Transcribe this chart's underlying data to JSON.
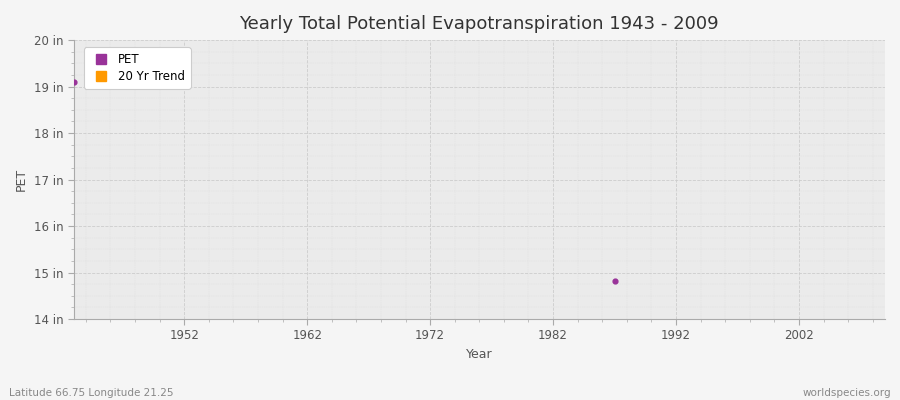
{
  "title": "Yearly Total Potential Evapotranspiration 1943 - 2009",
  "xlabel": "Year",
  "ylabel": "PET",
  "subtitle_left": "Latitude 66.75 Longitude 21.25",
  "subtitle_right": "worldspecies.org",
  "background_color": "#f5f5f5",
  "plot_bg_color": "#ebebeb",
  "ylim": [
    14,
    20
  ],
  "xlim": [
    1943,
    2009
  ],
  "ytick_labels": [
    "14 in",
    "15 in",
    "16 in",
    "17 in",
    "18 in",
    "19 in",
    "20 in"
  ],
  "ytick_values": [
    14,
    15,
    16,
    17,
    18,
    19,
    20
  ],
  "xtick_values": [
    1952,
    1962,
    1972,
    1982,
    1992,
    2002
  ],
  "pet_color": "#993399",
  "trend_color": "#ff9900",
  "pet_data": [
    [
      1943,
      19.1
    ],
    [
      1987,
      14.82
    ]
  ],
  "grid_major_color": "#cccccc",
  "grid_minor_color": "#dddddd",
  "title_fontsize": 13,
  "axis_label_fontsize": 9,
  "tick_fontsize": 8.5,
  "legend_marker_size": 7,
  "dot_size": 12,
  "spine_color": "#aaaaaa"
}
